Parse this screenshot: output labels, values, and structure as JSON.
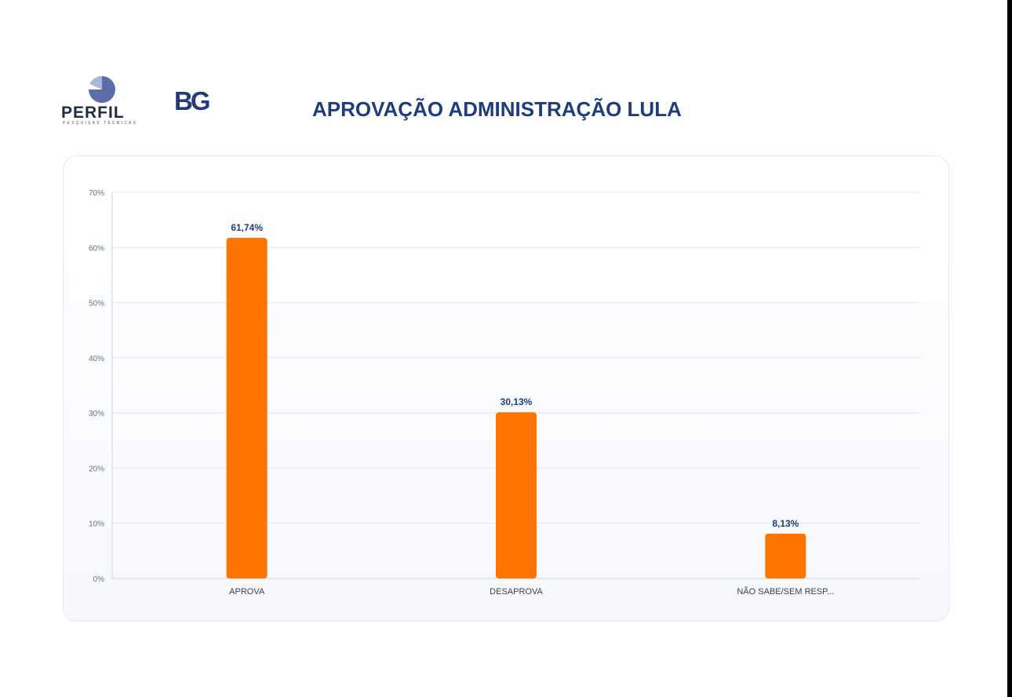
{
  "header": {
    "title": "APROVAÇÃO ADMINISTRAÇÃO LULA",
    "logo_left_text": "PERFIL",
    "logo_left_subtext": "PESQUISAS TÉCNICAS",
    "logo_right_text": "BG"
  },
  "colors": {
    "bar": "#ff7300",
    "title": "#1f3c7c",
    "data_label": "#1f3c7c",
    "grid": "#e5e7eb"
  },
  "chart_data": {
    "type": "bar",
    "title": "APROVAÇÃO ADMINISTRAÇÃO LULA",
    "categories": [
      "APROVA",
      "DESAPROVA",
      "NÃO SABE/SEM RESP..."
    ],
    "values": [
      61.74,
      30.13,
      8.13
    ],
    "data_labels": [
      "61,74%",
      "30,13%",
      "8,13%"
    ],
    "yticks": [
      "0%",
      "10%",
      "20%",
      "30%",
      "40%",
      "50%",
      "60%",
      "70%"
    ],
    "ylim": [
      0,
      70
    ],
    "xlabel": "",
    "ylabel": "",
    "grid": true,
    "legend": "none"
  }
}
